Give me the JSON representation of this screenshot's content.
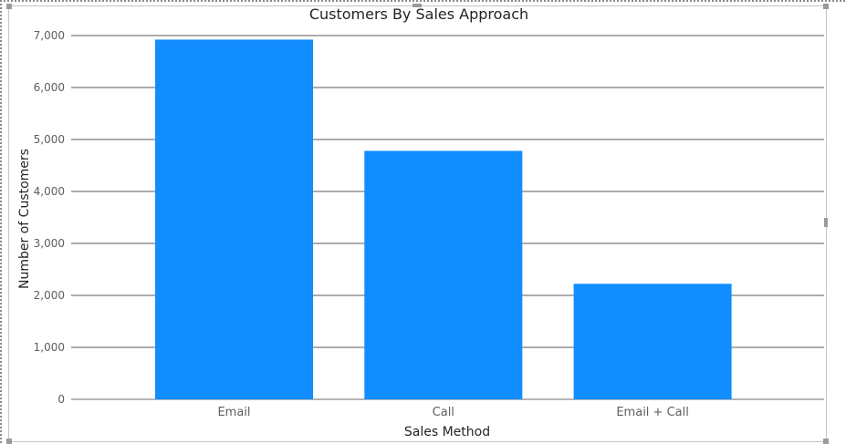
{
  "chart_data": {
    "type": "bar",
    "title": "Customers By Sales Approach",
    "xlabel": "Sales Method",
    "ylabel": "Number of Customers",
    "categories": [
      "Email",
      "Call",
      "Email + Call"
    ],
    "values": [
      6922,
      4781,
      2223
    ],
    "ylim": [
      0,
      7000
    ],
    "yticks": [
      "0",
      "1,000",
      "2,000",
      "3,000",
      "4,000",
      "5,000",
      "6,000",
      "7,000"
    ],
    "grid": true,
    "bar_color": "#118dff"
  }
}
